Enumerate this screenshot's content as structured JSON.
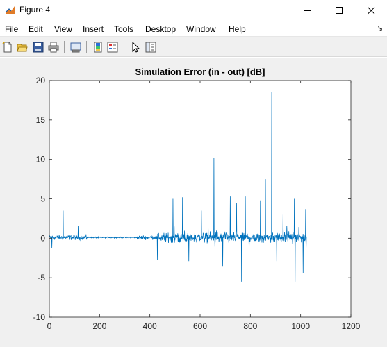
{
  "window": {
    "title": "Figure 4",
    "icon": "matlab-figure-icon",
    "controls": [
      "minimize-icon",
      "maximize-icon",
      "close-icon"
    ]
  },
  "menu": {
    "items": [
      "File",
      "Edit",
      "View",
      "Insert",
      "Tools",
      "Desktop",
      "Window",
      "Help"
    ],
    "dock_arrow": "↘"
  },
  "toolbar": {
    "buttons": [
      "new-figure-icon",
      "open-file-icon",
      "save-icon",
      "print-icon",
      "link-plot-icon",
      "insert-colorbar-icon",
      "insert-legend-icon",
      "edit-plot-arrow-icon",
      "property-inspector-icon"
    ]
  },
  "colors": {
    "line": "#0072bd",
    "figure_bg": "#f0f0f0",
    "axes_bg": "#ffffff"
  },
  "chart_data": {
    "type": "line",
    "title": "Simulation Error (in - out) [dB]",
    "xlabel": "",
    "ylabel": "",
    "xlim": [
      0,
      1200
    ],
    "ylim": [
      -10,
      20
    ],
    "xticks": [
      0,
      200,
      400,
      600,
      800,
      1000,
      1200
    ],
    "yticks": [
      -10,
      -5,
      0,
      5,
      10,
      15,
      20
    ],
    "xtick_labels": [
      "0",
      "200",
      "400",
      "600",
      "800",
      "1000",
      "1200"
    ],
    "ytick_labels": [
      "-10",
      "-5",
      "0",
      "5",
      "10",
      "15",
      "20"
    ],
    "grid": false,
    "n_points": 1024,
    "segments": [
      {
        "x_range": [
          0,
          150
        ],
        "amplitude": 0.5,
        "kind": "noise"
      },
      {
        "x_range": [
          150,
          350
        ],
        "amplitude": 0.12,
        "kind": "noise"
      },
      {
        "x_range": [
          350,
          430
        ],
        "amplitude": 0.4,
        "kind": "noise"
      },
      {
        "x_range": [
          430,
          1024
        ],
        "amplitude": 1.0,
        "kind": "noise"
      }
    ],
    "peaks": [
      {
        "x": 55,
        "y": 3.5
      },
      {
        "x": 115,
        "y": 1.6
      },
      {
        "x": 10,
        "y": -1.2
      },
      {
        "x": 430,
        "y": -2.7
      },
      {
        "x": 492,
        "y": 5.0
      },
      {
        "x": 530,
        "y": 5.2
      },
      {
        "x": 555,
        "y": -2.9
      },
      {
        "x": 605,
        "y": 3.5
      },
      {
        "x": 655,
        "y": 10.2
      },
      {
        "x": 690,
        "y": -3.6
      },
      {
        "x": 720,
        "y": 5.3
      },
      {
        "x": 745,
        "y": 4.5
      },
      {
        "x": 765,
        "y": -5.5
      },
      {
        "x": 780,
        "y": 5.3
      },
      {
        "x": 840,
        "y": 4.8
      },
      {
        "x": 860,
        "y": 7.5
      },
      {
        "x": 885,
        "y": 18.5
      },
      {
        "x": 905,
        "y": -2.9
      },
      {
        "x": 930,
        "y": 3.0
      },
      {
        "x": 975,
        "y": 5.0
      },
      {
        "x": 978,
        "y": -5.5
      },
      {
        "x": 1010,
        "y": -4.4
      },
      {
        "x": 1020,
        "y": 3.7
      },
      {
        "x": 1022,
        "y": -1.2
      }
    ]
  }
}
